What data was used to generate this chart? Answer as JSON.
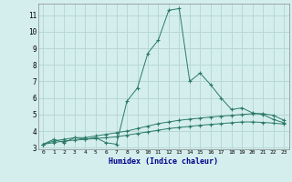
{
  "xlabel": "Humidex (Indice chaleur)",
  "bg_color": "#d4eeed",
  "grid_color": "#b8d8d5",
  "line_color": "#2a7a6a",
  "xlim": [
    -0.5,
    23.5
  ],
  "ylim": [
    2.9,
    11.7
  ],
  "yticks": [
    3,
    4,
    5,
    6,
    7,
    8,
    9,
    10,
    11
  ],
  "xticks": [
    0,
    1,
    2,
    3,
    4,
    5,
    6,
    7,
    8,
    9,
    10,
    11,
    12,
    13,
    14,
    15,
    16,
    17,
    18,
    19,
    20,
    21,
    22,
    23
  ],
  "series": [
    {
      "x": [
        0,
        1,
        2,
        3,
        4,
        5,
        6,
        7,
        8,
        9,
        10,
        11,
        12,
        13,
        14,
        15,
        16,
        17,
        18,
        19,
        20,
        21,
        22,
        23
      ],
      "y": [
        3.2,
        3.5,
        3.3,
        3.6,
        3.5,
        3.6,
        3.3,
        3.2,
        5.8,
        6.6,
        8.7,
        9.5,
        11.3,
        11.4,
        7.0,
        7.5,
        6.8,
        6.0,
        5.3,
        5.4,
        5.1,
        5.0,
        4.7,
        4.5
      ]
    },
    {
      "x": [
        0,
        1,
        2,
        3,
        4,
        5,
        6,
        7,
        8,
        9,
        10,
        11,
        12,
        13,
        14,
        15,
        16,
        17,
        18,
        19,
        20,
        21,
        22,
        23
      ],
      "y": [
        3.2,
        3.4,
        3.5,
        3.6,
        3.6,
        3.7,
        3.8,
        3.9,
        4.0,
        4.15,
        4.3,
        4.45,
        4.55,
        4.65,
        4.72,
        4.78,
        4.85,
        4.9,
        4.95,
        5.0,
        5.05,
        5.05,
        4.95,
        4.65
      ]
    },
    {
      "x": [
        0,
        1,
        2,
        3,
        4,
        5,
        6,
        7,
        8,
        9,
        10,
        11,
        12,
        13,
        14,
        15,
        16,
        17,
        18,
        19,
        20,
        21,
        22,
        23
      ],
      "y": [
        3.2,
        3.3,
        3.4,
        3.45,
        3.5,
        3.55,
        3.6,
        3.65,
        3.75,
        3.85,
        3.95,
        4.05,
        4.15,
        4.22,
        4.28,
        4.35,
        4.4,
        4.45,
        4.5,
        4.55,
        4.55,
        4.52,
        4.48,
        4.42
      ]
    }
  ]
}
